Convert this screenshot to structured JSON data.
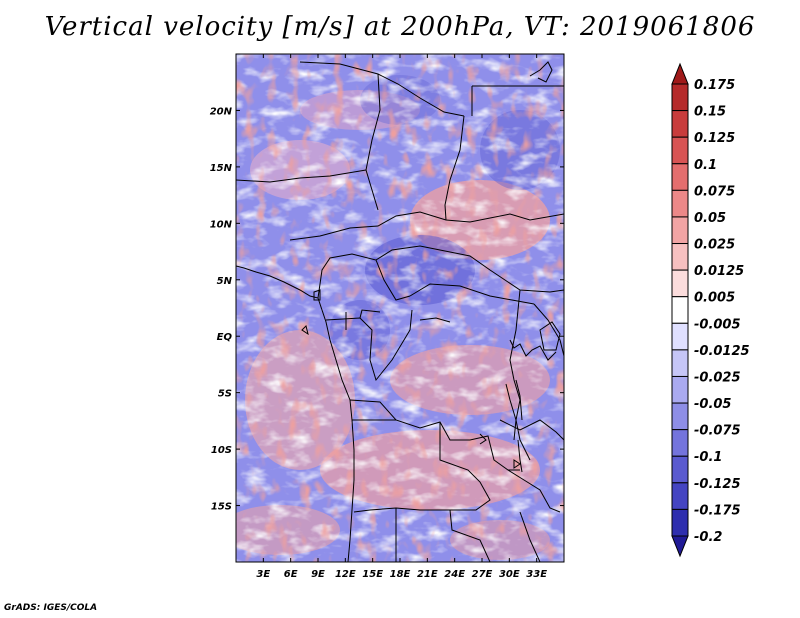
{
  "title": "Vertical velocity [m/s] at 200hPa, VT: 2019061806",
  "credit": "GrADS: IGES/COLA",
  "map": {
    "lon_range": [
      0,
      36
    ],
    "lat_range": [
      -20,
      25
    ],
    "lon_ticks": [
      {
        "value": 3,
        "label": "3E"
      },
      {
        "value": 6,
        "label": "6E"
      },
      {
        "value": 9,
        "label": "9E"
      },
      {
        "value": 12,
        "label": "12E"
      },
      {
        "value": 15,
        "label": "15E"
      },
      {
        "value": 18,
        "label": "18E"
      },
      {
        "value": 21,
        "label": "21E"
      },
      {
        "value": 24,
        "label": "24E"
      },
      {
        "value": 27,
        "label": "27E"
      },
      {
        "value": 30,
        "label": "30E"
      },
      {
        "value": 33,
        "label": "33E"
      }
    ],
    "lat_ticks": [
      {
        "value": 20,
        "label": "20N"
      },
      {
        "value": 15,
        "label": "15N"
      },
      {
        "value": 10,
        "label": "10N"
      },
      {
        "value": 5,
        "label": "5N"
      },
      {
        "value": 0,
        "label": "EQ"
      },
      {
        "value": -5,
        "label": "5S"
      },
      {
        "value": -10,
        "label": "10S"
      },
      {
        "value": -15,
        "label": "15S"
      }
    ]
  },
  "colorbar": {
    "labels": [
      "0.175",
      "0.15",
      "0.125",
      "0.1",
      "0.075",
      "0.05",
      "0.025",
      "0.0125",
      "0.005",
      "-0.005",
      "-0.0125",
      "-0.025",
      "-0.05",
      "-0.075",
      "-0.1",
      "-0.125",
      "-0.175",
      "-0.2"
    ],
    "colors": [
      "#a01a1a",
      "#b52a2a",
      "#c83c3c",
      "#d85454",
      "#e46e6e",
      "#ec8888",
      "#f2a4a4",
      "#f7c0c0",
      "#fbdcdc",
      "#ffffff",
      "#e0e0ff",
      "#c6c6f7",
      "#aaaaf0",
      "#8e8ee6",
      "#7474dc",
      "#5a5ad0",
      "#4444c2",
      "#2e2eae",
      "#201a96"
    ]
  }
}
